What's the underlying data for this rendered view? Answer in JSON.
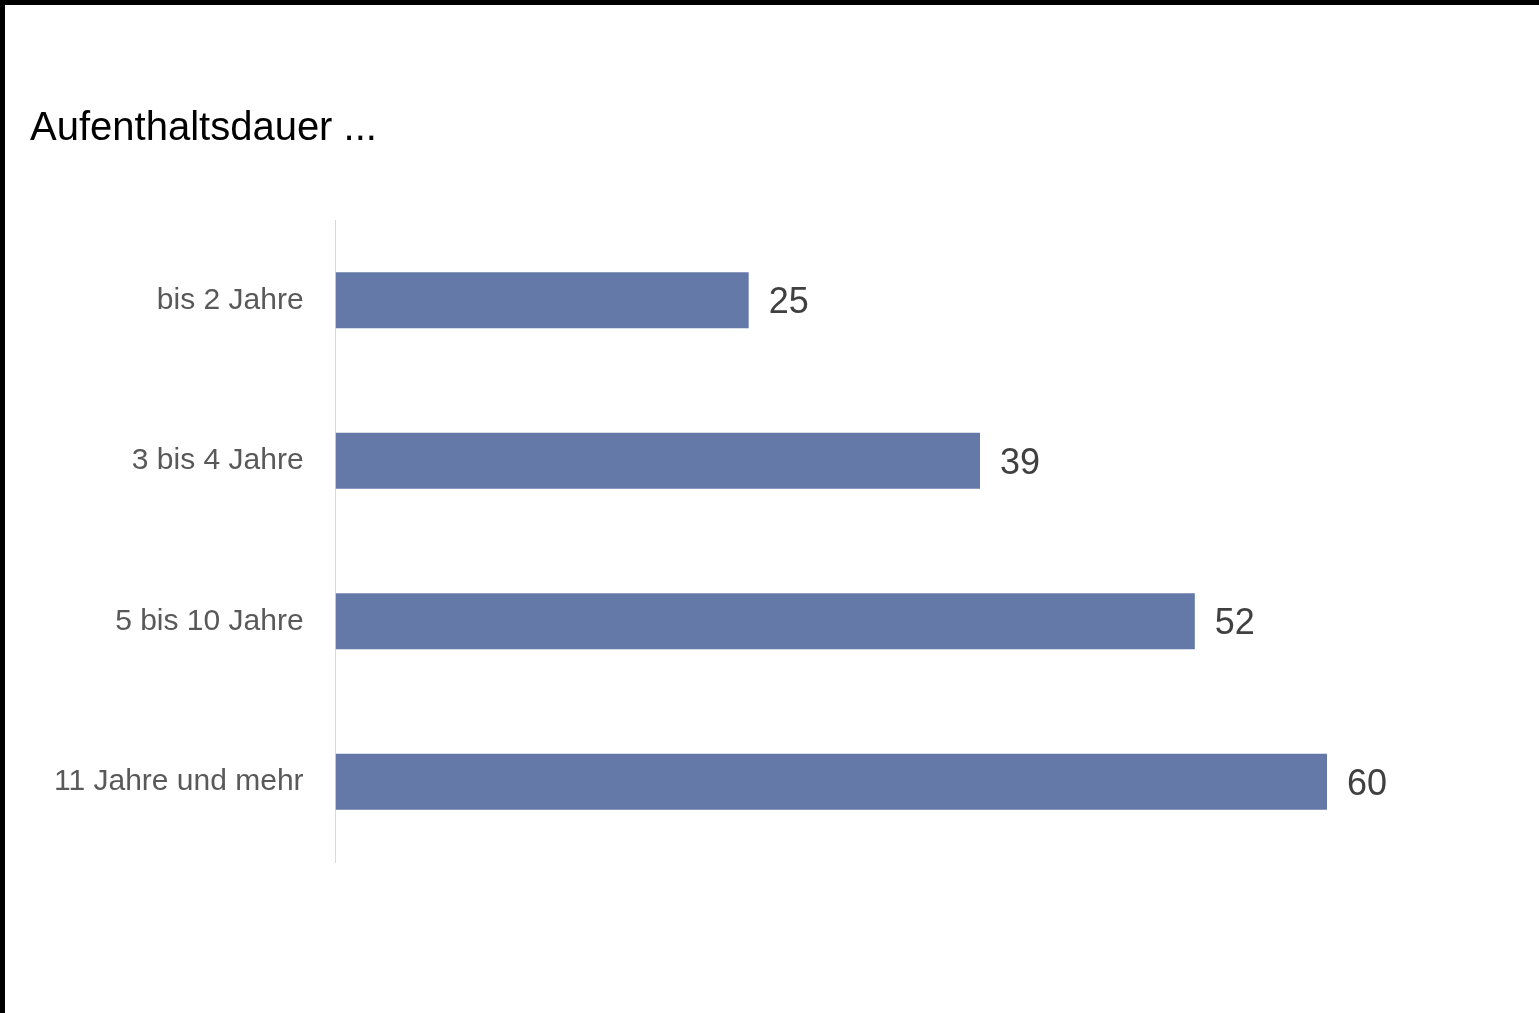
{
  "chart_data": {
    "type": "bar",
    "orientation": "horizontal",
    "title": "Aufenthaltsdauer ...",
    "categories": [
      "bis 2 Jahre",
      "3 bis 4 Jahre",
      "5 bis 10 Jahre",
      "11 Jahre und mehr"
    ],
    "values": [
      25,
      39,
      52,
      60
    ],
    "color": "#6479a8",
    "data_labels": true,
    "legend": false,
    "tick_labels": "y"
  }
}
